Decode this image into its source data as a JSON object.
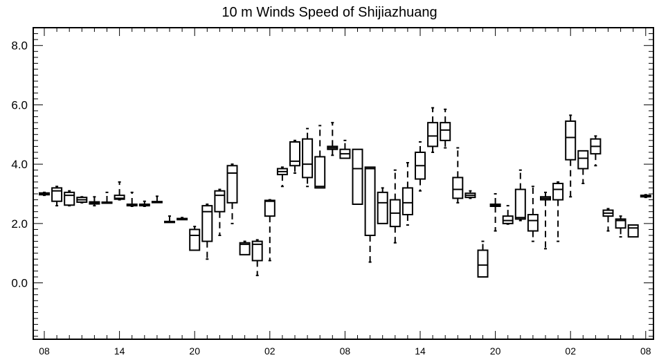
{
  "chart_data": {
    "type": "box",
    "title": "10 m Winds Speed of Shijiazhuang",
    "xlabel": "",
    "ylabel": "",
    "ylim": [
      -1.9,
      8.6
    ],
    "y_ticks": [
      {
        "value": 8.0,
        "label": "8.0"
      },
      {
        "value": 6.0,
        "label": "6.0"
      },
      {
        "value": 4.0,
        "label": "4.0"
      },
      {
        "value": 2.0,
        "label": "2.0"
      },
      {
        "value": 0.0,
        "label": "0.0"
      }
    ],
    "x_ticks": [
      {
        "index": 0,
        "label": "08"
      },
      {
        "index": 6,
        "label": "14"
      },
      {
        "index": 12,
        "label": "20"
      },
      {
        "index": 18,
        "label": "02"
      },
      {
        "index": 24,
        "label": "08"
      },
      {
        "index": 30,
        "label": "14"
      },
      {
        "index": 36,
        "label": "20"
      },
      {
        "index": 42,
        "label": "02"
      },
      {
        "index": 48,
        "label": "08"
      }
    ],
    "x_count": 49,
    "boxes": [
      {
        "i": 0,
        "min": 2.95,
        "q1": 2.97,
        "median": 3.0,
        "q3": 3.03,
        "max": 3.05
      },
      {
        "i": 1,
        "min": 2.6,
        "q1": 2.75,
        "median": 3.1,
        "q3": 3.2,
        "max": 3.25
      },
      {
        "i": 2,
        "min": 2.6,
        "q1": 2.62,
        "median": 2.95,
        "q3": 3.05,
        "max": 3.1
      },
      {
        "i": 3,
        "min": 2.7,
        "q1": 2.72,
        "median": 2.8,
        "q3": 2.88,
        "max": 2.9
      },
      {
        "i": 4,
        "min": 2.6,
        "q1": 2.66,
        "median": 2.7,
        "q3": 2.73,
        "max": 2.9
      },
      {
        "i": 5,
        "min": 2.68,
        "q1": 2.69,
        "median": 2.7,
        "q3": 2.72,
        "max": 3.05
      },
      {
        "i": 6,
        "min": 2.8,
        "q1": 2.82,
        "median": 2.85,
        "q3": 2.95,
        "max": 3.4
      },
      {
        "i": 7,
        "min": 2.58,
        "q1": 2.6,
        "median": 2.62,
        "q3": 2.65,
        "max": 3.05
      },
      {
        "i": 8,
        "min": 2.58,
        "q1": 2.6,
        "median": 2.63,
        "q3": 2.65,
        "max": 2.75
      },
      {
        "i": 9,
        "min": 2.7,
        "q1": 2.71,
        "median": 2.72,
        "q3": 2.74,
        "max": 2.92
      },
      {
        "i": 10,
        "min": 2.03,
        "q1": 2.04,
        "median": 2.05,
        "q3": 2.07,
        "max": 2.25
      },
      {
        "i": 11,
        "min": 2.12,
        "q1": 2.13,
        "median": 2.15,
        "q3": 2.17,
        "max": 2.2
      },
      {
        "i": 12,
        "min": 1.1,
        "q1": 1.1,
        "median": 1.6,
        "q3": 1.8,
        "max": 1.9
      },
      {
        "i": 13,
        "min": 0.8,
        "q1": 1.4,
        "median": 2.4,
        "q3": 2.6,
        "max": 2.65
      },
      {
        "i": 14,
        "min": 1.6,
        "q1": 2.4,
        "median": 2.95,
        "q3": 3.1,
        "max": 3.15
      },
      {
        "i": 15,
        "min": 2.0,
        "q1": 2.7,
        "median": 3.7,
        "q3": 3.95,
        "max": 4.0
      },
      {
        "i": 16,
        "min": 0.95,
        "q1": 0.95,
        "median": 1.3,
        "q3": 1.35,
        "max": 1.4
      },
      {
        "i": 17,
        "min": 0.25,
        "q1": 0.75,
        "median": 1.3,
        "q3": 1.4,
        "max": 1.45
      },
      {
        "i": 18,
        "min": 0.75,
        "q1": 2.25,
        "median": 2.75,
        "q3": 2.78,
        "max": 2.8
      },
      {
        "i": 19,
        "min": 3.25,
        "q1": 3.65,
        "median": 3.75,
        "q3": 3.85,
        "max": 3.9
      },
      {
        "i": 20,
        "min": 3.7,
        "q1": 3.95,
        "median": 4.1,
        "q3": 4.75,
        "max": 4.8
      },
      {
        "i": 21,
        "min": 3.25,
        "q1": 3.55,
        "median": 4.0,
        "q3": 4.85,
        "max": 5.2
      },
      {
        "i": 22,
        "min": 3.2,
        "q1": 3.2,
        "median": 3.25,
        "q3": 4.25,
        "max": 5.3
      },
      {
        "i": 23,
        "min": 4.3,
        "q1": 4.5,
        "median": 4.55,
        "q3": 4.6,
        "max": 5.4
      },
      {
        "i": 24,
        "min": 4.2,
        "q1": 4.2,
        "median": 4.35,
        "q3": 4.5,
        "max": 4.8
      },
      {
        "i": 25,
        "min": 2.65,
        "q1": 2.65,
        "median": 3.85,
        "q3": 4.5,
        "max": 4.5
      },
      {
        "i": 26,
        "min": 0.7,
        "q1": 1.6,
        "median": 3.85,
        "q3": 3.9,
        "max": 3.9
      },
      {
        "i": 27,
        "min": 2.0,
        "q1": 2.0,
        "median": 2.7,
        "q3": 3.05,
        "max": 3.2
      },
      {
        "i": 28,
        "min": 1.35,
        "q1": 1.9,
        "median": 2.35,
        "q3": 2.8,
        "max": 3.8
      },
      {
        "i": 29,
        "min": 1.95,
        "q1": 2.3,
        "median": 2.7,
        "q3": 3.2,
        "max": 4.05
      },
      {
        "i": 30,
        "min": 3.1,
        "q1": 3.5,
        "median": 3.95,
        "q3": 4.4,
        "max": 4.75
      },
      {
        "i": 31,
        "min": 4.4,
        "q1": 4.6,
        "median": 4.95,
        "q3": 5.4,
        "max": 5.9
      },
      {
        "i": 32,
        "min": 4.55,
        "q1": 4.8,
        "median": 5.15,
        "q3": 5.4,
        "max": 5.85
      },
      {
        "i": 33,
        "min": 2.7,
        "q1": 2.85,
        "median": 3.15,
        "q3": 3.55,
        "max": 4.55
      },
      {
        "i": 34,
        "min": 2.85,
        "q1": 2.88,
        "median": 2.95,
        "q3": 3.02,
        "max": 3.1
      },
      {
        "i": 35,
        "min": 0.2,
        "q1": 0.2,
        "median": 0.6,
        "q3": 1.1,
        "max": 1.4
      },
      {
        "i": 36,
        "min": 1.75,
        "q1": 2.58,
        "median": 2.62,
        "q3": 2.65,
        "max": 3.0
      },
      {
        "i": 37,
        "min": 1.98,
        "q1": 2.0,
        "median": 2.1,
        "q3": 2.25,
        "max": 2.6
      },
      {
        "i": 38,
        "min": 2.1,
        "q1": 2.15,
        "median": 2.2,
        "q3": 3.15,
        "max": 3.8
      },
      {
        "i": 39,
        "min": 1.4,
        "q1": 1.75,
        "median": 2.1,
        "q3": 2.3,
        "max": 3.25
      },
      {
        "i": 40,
        "min": 1.15,
        "q1": 2.8,
        "median": 2.85,
        "q3": 2.9,
        "max": 3.05
      },
      {
        "i": 41,
        "min": 1.4,
        "q1": 2.8,
        "median": 3.15,
        "q3": 3.35,
        "max": 3.4
      },
      {
        "i": 42,
        "min": 2.9,
        "q1": 4.15,
        "median": 4.9,
        "q3": 5.45,
        "max": 5.65
      },
      {
        "i": 43,
        "min": 3.35,
        "q1": 3.85,
        "median": 4.2,
        "q3": 4.45,
        "max": 4.45
      },
      {
        "i": 44,
        "min": 3.95,
        "q1": 4.35,
        "median": 4.6,
        "q3": 4.85,
        "max": 4.95
      },
      {
        "i": 45,
        "min": 1.75,
        "q1": 2.25,
        "median": 2.35,
        "q3": 2.45,
        "max": 2.5
      },
      {
        "i": 46,
        "min": 1.55,
        "q1": 1.85,
        "median": 2.1,
        "q3": 2.15,
        "max": 2.25
      },
      {
        "i": 47,
        "min": 1.55,
        "q1": 1.55,
        "median": 1.85,
        "q3": 1.95,
        "max": 1.95
      },
      {
        "i": 48,
        "min": 2.88,
        "q1": 2.9,
        "median": 2.92,
        "q3": 2.95,
        "max": 2.97
      }
    ],
    "grid": false,
    "colors": {
      "stroke": "#000000",
      "fill": "#ffffff"
    }
  }
}
